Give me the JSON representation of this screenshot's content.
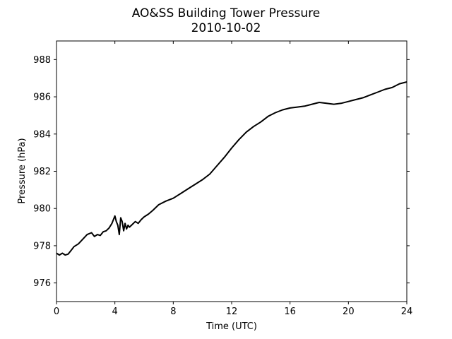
{
  "chart_data": {
    "type": "line",
    "title": "AO&SS Building Tower Pressure",
    "subtitle": "2010-10-02",
    "xlabel": "Time (UTC)",
    "ylabel": "Pressure (hPa)",
    "xlim": [
      0,
      24
    ],
    "ylim": [
      975,
      989
    ],
    "xticks": [
      0,
      4,
      8,
      12,
      16,
      20,
      24
    ],
    "yticks": [
      976,
      978,
      980,
      982,
      984,
      986,
      988
    ],
    "grid": false,
    "series": [
      {
        "color": "#000000",
        "x": [
          0,
          0.2,
          0.4,
          0.6,
          0.8,
          1.0,
          1.2,
          1.5,
          1.8,
          2.1,
          2.4,
          2.6,
          2.8,
          3.0,
          3.2,
          3.4,
          3.6,
          3.8,
          4.0,
          4.1,
          4.2,
          4.3,
          4.4,
          4.5,
          4.6,
          4.7,
          4.8,
          4.9,
          5.0,
          5.2,
          5.4,
          5.6,
          5.8,
          6.0,
          6.3,
          6.6,
          7.0,
          7.5,
          8.0,
          8.5,
          9.0,
          9.5,
          10.0,
          10.5,
          11.0,
          11.5,
          12.0,
          12.5,
          13.0,
          13.5,
          14.0,
          14.5,
          15.0,
          15.5,
          16.0,
          16.5,
          17.0,
          17.5,
          18.0,
          18.5,
          19.0,
          19.5,
          20.0,
          20.5,
          21.0,
          21.5,
          22.0,
          22.5,
          23.0,
          23.5,
          24.0
        ],
        "y": [
          977.6,
          977.5,
          977.6,
          977.5,
          977.55,
          977.75,
          977.95,
          978.1,
          978.35,
          978.6,
          978.7,
          978.5,
          978.6,
          978.55,
          978.75,
          978.8,
          978.95,
          979.2,
          979.6,
          979.3,
          979.1,
          978.6,
          979.5,
          979.3,
          978.8,
          979.2,
          978.9,
          979.1,
          979.0,
          979.15,
          979.3,
          979.2,
          979.4,
          979.55,
          979.7,
          979.9,
          980.2,
          980.4,
          980.55,
          980.8,
          981.05,
          981.3,
          981.55,
          981.85,
          982.3,
          982.75,
          983.25,
          983.7,
          984.1,
          984.4,
          984.65,
          984.95,
          985.15,
          985.3,
          985.4,
          985.45,
          985.5,
          985.6,
          985.7,
          985.65,
          985.6,
          985.65,
          985.75,
          985.85,
          985.95,
          986.1,
          986.25,
          986.4,
          986.5,
          986.7,
          986.8
        ]
      }
    ]
  }
}
